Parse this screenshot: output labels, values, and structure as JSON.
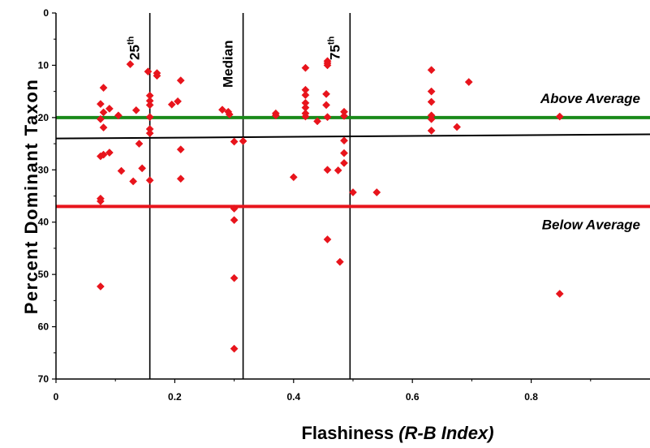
{
  "chart_data": {
    "type": "scatter",
    "xlabel": "Flashiness",
    "xlabel_italic": "(R-B Index)",
    "ylabel": "Percent Dominant Taxon",
    "xlim": [
      0,
      1.0
    ],
    "ylim": [
      70,
      0
    ],
    "y_inverted": true,
    "x_ticks": [
      "0",
      "0.2",
      "0.4",
      "0.6",
      "0.8"
    ],
    "y_ticks": [
      "0",
      "10",
      "20",
      "30",
      "40",
      "50",
      "60",
      "70"
    ],
    "series": [
      {
        "marker": "diamond",
        "color": "#e8141c",
        "points": [
          [
            0.075,
            52.3
          ],
          [
            0.075,
            35.5
          ],
          [
            0.075,
            36.0
          ],
          [
            0.075,
            27.4
          ],
          [
            0.075,
            20.3
          ],
          [
            0.075,
            17.4
          ],
          [
            0.08,
            14.3
          ],
          [
            0.08,
            19.0
          ],
          [
            0.08,
            21.9
          ],
          [
            0.08,
            27.1
          ],
          [
            0.09,
            18.3
          ],
          [
            0.09,
            26.7
          ],
          [
            0.105,
            19.6
          ],
          [
            0.11,
            30.2
          ],
          [
            0.125,
            9.8
          ],
          [
            0.13,
            32.2
          ],
          [
            0.135,
            18.6
          ],
          [
            0.14,
            25.0
          ],
          [
            0.145,
            29.7
          ],
          [
            0.155,
            11.2
          ],
          [
            0.158,
            15.8
          ],
          [
            0.158,
            16.8
          ],
          [
            0.158,
            17.6
          ],
          [
            0.158,
            19.9
          ],
          [
            0.158,
            22.2
          ],
          [
            0.158,
            23.0
          ],
          [
            0.158,
            32.0
          ],
          [
            0.17,
            11.5
          ],
          [
            0.17,
            12.0
          ],
          [
            0.195,
            17.5
          ],
          [
            0.205,
            16.9
          ],
          [
            0.21,
            12.9
          ],
          [
            0.21,
            26.1
          ],
          [
            0.21,
            31.7
          ],
          [
            0.28,
            18.5
          ],
          [
            0.29,
            18.9
          ],
          [
            0.292,
            19.4
          ],
          [
            0.3,
            24.6
          ],
          [
            0.3,
            37.4
          ],
          [
            0.3,
            39.6
          ],
          [
            0.3,
            50.7
          ],
          [
            0.3,
            64.2
          ],
          [
            0.315,
            24.5
          ],
          [
            0.37,
            19.2
          ],
          [
            0.37,
            19.6
          ],
          [
            0.4,
            31.4
          ],
          [
            0.42,
            10.5
          ],
          [
            0.42,
            14.7
          ],
          [
            0.42,
            15.7
          ],
          [
            0.42,
            17.2
          ],
          [
            0.42,
            18.1
          ],
          [
            0.42,
            19.2
          ],
          [
            0.42,
            19.8
          ],
          [
            0.44,
            20.7
          ],
          [
            0.455,
            15.5
          ],
          [
            0.455,
            17.6
          ],
          [
            0.457,
            10.0
          ],
          [
            0.457,
            9.2
          ],
          [
            0.457,
            9.6
          ],
          [
            0.457,
            19.9
          ],
          [
            0.457,
            30.0
          ],
          [
            0.457,
            43.3
          ],
          [
            0.475,
            30.1
          ],
          [
            0.478,
            47.6
          ],
          [
            0.485,
            18.9
          ],
          [
            0.485,
            19.7
          ],
          [
            0.485,
            24.4
          ],
          [
            0.485,
            26.8
          ],
          [
            0.485,
            28.7
          ],
          [
            0.5,
            34.3
          ],
          [
            0.54,
            34.3
          ],
          [
            0.632,
            10.9
          ],
          [
            0.632,
            15.0
          ],
          [
            0.632,
            17.0
          ],
          [
            0.632,
            19.6
          ],
          [
            0.632,
            20.3
          ],
          [
            0.632,
            22.5
          ],
          [
            0.675,
            21.8
          ],
          [
            0.695,
            13.2
          ],
          [
            0.848,
            19.8
          ],
          [
            0.848,
            53.7
          ]
        ]
      }
    ],
    "vertical_lines": [
      {
        "x": 0.158,
        "label": "25",
        "sup": "th"
      },
      {
        "x": 0.315,
        "label": "Median",
        "sup": ""
      },
      {
        "x": 0.495,
        "label": "75",
        "sup": "th"
      }
    ],
    "horizontal_lines": [
      {
        "y": 20.0,
        "color": "#1a8a1a",
        "label": "Above Average"
      },
      {
        "y": 37.0,
        "color": "#e8141c",
        "label": "Below Average"
      }
    ],
    "trend_line": {
      "color": "#000000",
      "from": [
        0,
        24.0
      ],
      "to": [
        1.0,
        23.2
      ]
    }
  }
}
